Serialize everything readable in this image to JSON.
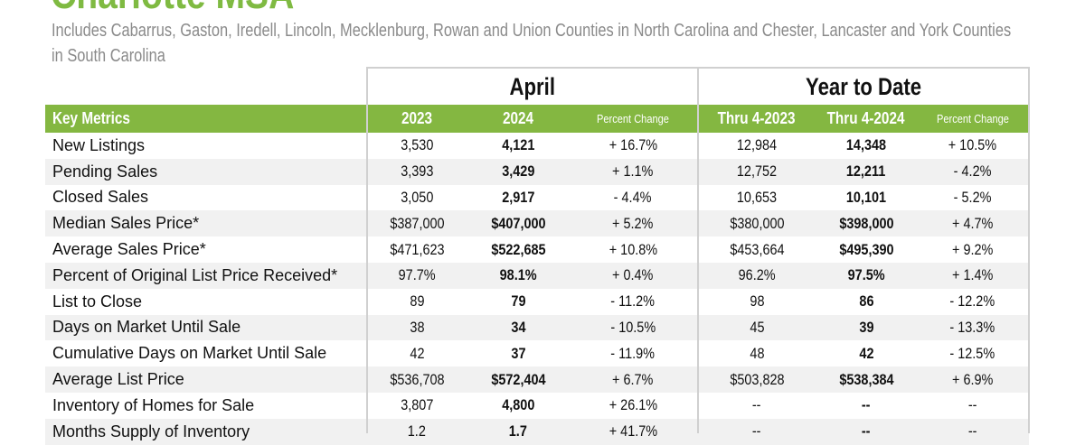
{
  "title": "Charlotte MSA",
  "subtitle": "Includes Cabarrus, Gaston, Iredell, Lincoln, Mecklenburg, Rowan and Union Counties in North Carolina and Chester, Lancaster and York Counties in South Carolina",
  "groups": {
    "month": "April",
    "ytd": "Year to Date"
  },
  "header": [
    "Key Metrics",
    "2023",
    "2024",
    "Percent Change",
    "Thru 4-2023",
    "Thru 4-2024",
    "Percent Change"
  ],
  "accent_color": "#84b741",
  "rows": [
    [
      "New Listings",
      "3,530",
      "4,121",
      "+ 16.7%",
      "12,984",
      "14,348",
      "+ 10.5%"
    ],
    [
      "Pending Sales",
      "3,393",
      "3,429",
      "+ 1.1%",
      "12,752",
      "12,211",
      "- 4.2%"
    ],
    [
      "Closed Sales",
      "3,050",
      "2,917",
      "- 4.4%",
      "10,653",
      "10,101",
      "- 5.2%"
    ],
    [
      "Median Sales Price*",
      "$387,000",
      "$407,000",
      "+ 5.2%",
      "$380,000",
      "$398,000",
      "+ 4.7%"
    ],
    [
      "Average Sales Price*",
      "$471,623",
      "$522,685",
      "+ 10.8%",
      "$453,664",
      "$495,390",
      "+ 9.2%"
    ],
    [
      "Percent of Original List Price Received*",
      "97.7%",
      "98.1%",
      "+ 0.4%",
      "96.2%",
      "97.5%",
      "+ 1.4%"
    ],
    [
      "List to Close",
      "89",
      "79",
      "- 11.2%",
      "98",
      "86",
      "- 12.2%"
    ],
    [
      "Days on Market Until Sale",
      "38",
      "34",
      "- 10.5%",
      "45",
      "39",
      "- 13.3%"
    ],
    [
      "Cumulative Days on Market Until Sale",
      "42",
      "37",
      "- 11.9%",
      "48",
      "42",
      "- 12.5%"
    ],
    [
      "Average List Price",
      "$536,708",
      "$572,404",
      "+ 6.7%",
      "$503,828",
      "$538,384",
      "+ 6.9%"
    ],
    [
      "Inventory of Homes for Sale",
      "3,807",
      "4,800",
      "+ 26.1%",
      "--",
      "--",
      "--"
    ],
    [
      "Months Supply of Inventory",
      "1.2",
      "1.7",
      "+ 41.7%",
      "--",
      "--",
      "--"
    ]
  ]
}
